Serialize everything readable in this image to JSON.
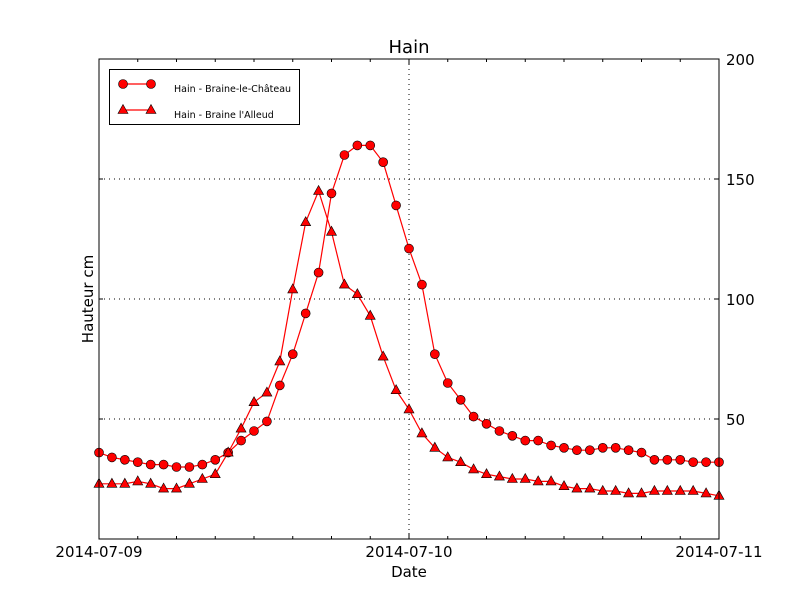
{
  "chart_data": {
    "type": "line",
    "title": "Hain",
    "xlabel": "Date",
    "ylabel": "Hauteur cm",
    "x_unit": "hours from 2014-07-09 00:00",
    "x": [
      0,
      1,
      2,
      3,
      4,
      5,
      6,
      7,
      8,
      9,
      10,
      11,
      12,
      13,
      14,
      15,
      16,
      17,
      18,
      19,
      20,
      21,
      22,
      23,
      24,
      25,
      26,
      27,
      28,
      29,
      30,
      31,
      32,
      33,
      34,
      35,
      36,
      37,
      38,
      39,
      40,
      41,
      42,
      43,
      44,
      45,
      46,
      47,
      48
    ],
    "xlim": [
      "2014-07-09",
      "2014-07-11"
    ],
    "x_tick_labels": [
      "2014-07-09",
      "2014-07-10",
      "2014-07-11"
    ],
    "ylim": [
      0,
      200
    ],
    "y_ticks": [
      50,
      100,
      150,
      200
    ],
    "y_axis_side": "right",
    "grid": "dotted",
    "legend_placement": "top-left",
    "series": [
      {
        "name": "Hain - Braine-le-Château",
        "marker": "circle",
        "color": "#ff0000",
        "values": [
          36,
          34,
          33,
          32,
          31,
          31,
          30,
          30,
          31,
          33,
          36,
          41,
          45,
          49,
          64,
          77,
          94,
          111,
          144,
          160,
          164,
          164,
          157,
          139,
          121,
          106,
          77,
          65,
          58,
          51,
          48,
          45,
          43,
          41,
          41,
          39,
          38,
          37,
          37,
          38,
          38,
          37,
          36,
          33,
          33,
          33,
          32,
          32,
          32
        ]
      },
      {
        "name": "Hain - Braine l'Alleud",
        "marker": "triangle",
        "color": "#ff0000",
        "values": [
          23,
          23,
          23,
          24,
          23,
          21,
          21,
          23,
          25,
          27,
          36,
          46,
          57,
          61,
          74,
          104,
          132,
          145,
          128,
          106,
          102,
          93,
          76,
          62,
          54,
          44,
          38,
          34,
          32,
          29,
          27,
          26,
          25,
          25,
          24,
          24,
          22,
          21,
          21,
          20,
          20,
          19,
          19,
          20,
          20,
          20,
          20,
          19,
          18
        ]
      }
    ]
  }
}
